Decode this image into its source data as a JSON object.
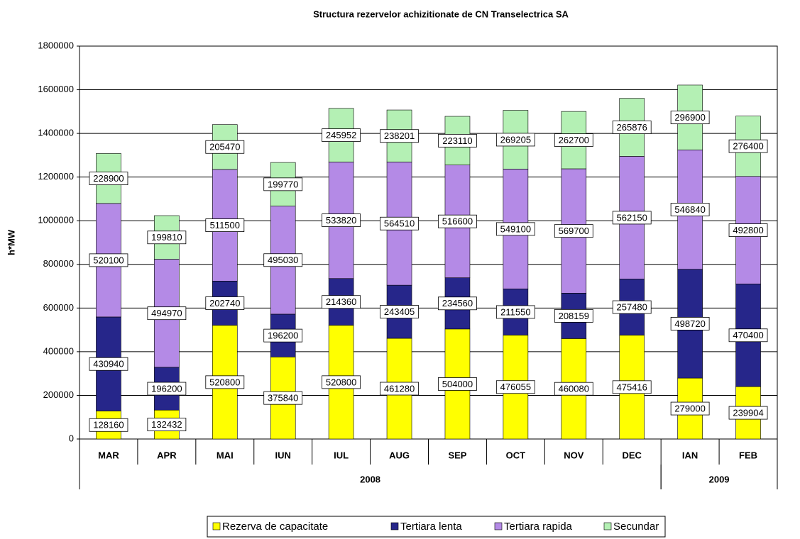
{
  "chart_data": {
    "type": "stacked_bar",
    "title": "Structura rezervelor achizitionate de CN Transelectrica SA",
    "y_label": "h*MW",
    "categories": [
      "MAR",
      "APR",
      "MAI",
      "IUN",
      "IUL",
      "AUG",
      "SEP",
      "OCT",
      "NOV",
      "DEC",
      "IAN",
      "FEB"
    ],
    "x_groups": [
      {
        "label": "2008",
        "count": 10
      },
      {
        "label": "2009",
        "count": 2
      }
    ],
    "ylim": [
      0,
      1800000
    ],
    "yticks": [
      0,
      200000,
      400000,
      600000,
      800000,
      1000000,
      1200000,
      1400000,
      1600000,
      1800000
    ],
    "grid": true,
    "legend": "bottom",
    "series": [
      {
        "name": "Rezerva de capacitate",
        "color": "#ffff00",
        "values": [
          128160,
          132432,
          520800,
          375840,
          520800,
          461280,
          504000,
          476055,
          460080,
          475416,
          279000,
          239904
        ]
      },
      {
        "name": "Tertiara lenta",
        "color": "#26268a",
        "values": [
          430940,
          196200,
          202740,
          196200,
          214360,
          243405,
          234560,
          211550,
          208159,
          257480,
          498720,
          470400
        ]
      },
      {
        "name": "Tertiara rapida",
        "color": "#b48ae6",
        "values": [
          520100,
          494970,
          511500,
          495030,
          533820,
          564510,
          516600,
          549100,
          569700,
          562150,
          546840,
          492800
        ]
      },
      {
        "name": "Secundar",
        "color": "#b4f0b4",
        "values": [
          228900,
          199810,
          205470,
          199770,
          245952,
          238201,
          223110,
          269205,
          262700,
          265876,
          296900,
          276400
        ]
      }
    ]
  }
}
